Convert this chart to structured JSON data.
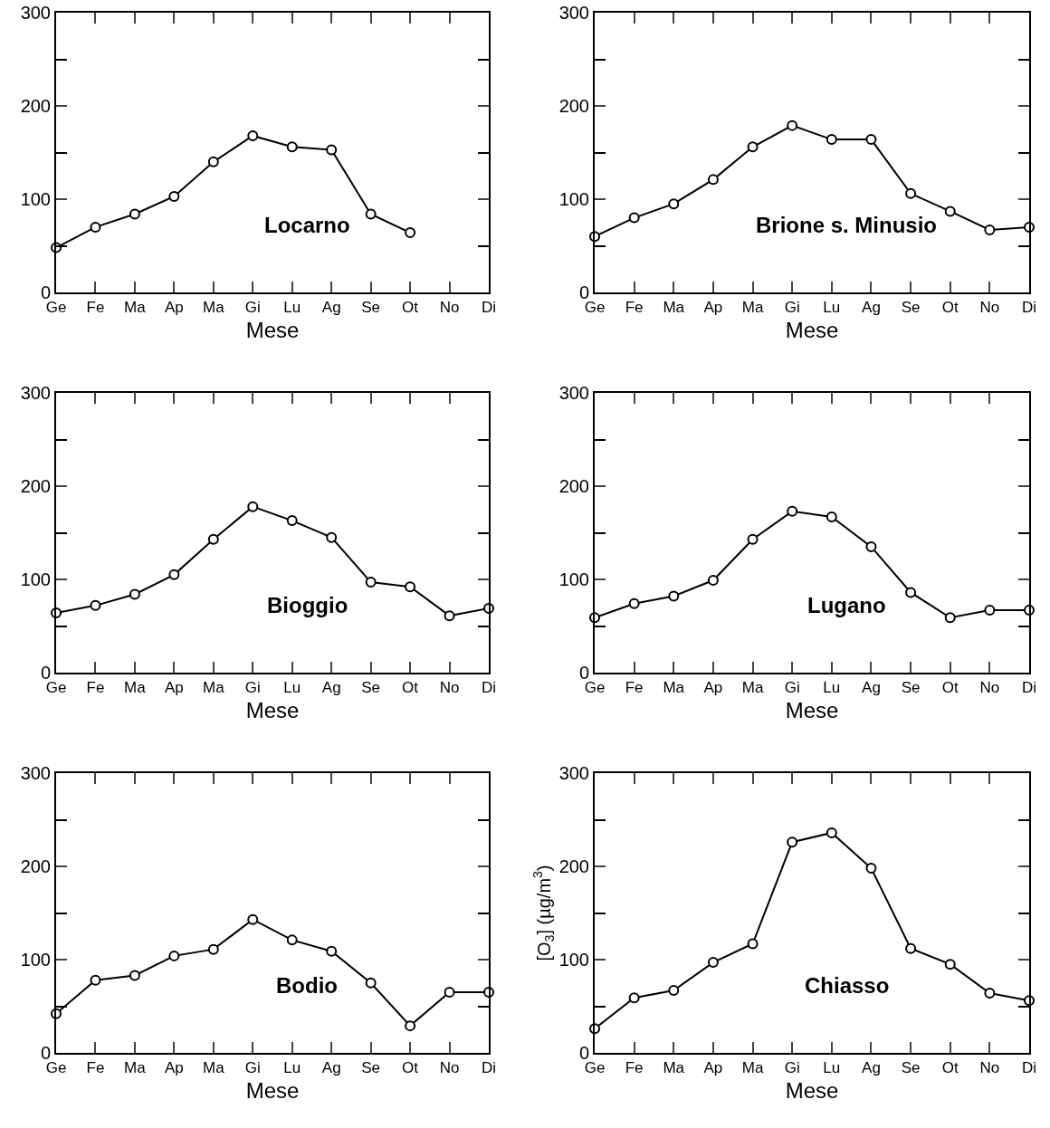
{
  "chart_data": [
    {
      "type": "line",
      "categories": [
        "Ge",
        "Fe",
        "Ma",
        "Ap",
        "Ma",
        "Gi",
        "Lu",
        "Ag",
        "Se",
        "Ot",
        "No",
        "Di"
      ],
      "xlabel": "Mese",
      "annotations": [
        "Locarno"
      ],
      "series": [
        {
          "color": "#000000",
          "values": [
            48,
            70,
            84,
            103,
            140,
            168,
            156,
            153,
            84,
            64,
            null,
            null
          ]
        }
      ],
      "ylim": [
        0,
        300
      ],
      "yticks": [
        0,
        {
          "value": 50,
          "label": null
        },
        100,
        {
          "value": 150,
          "label": null
        },
        200,
        {
          "value": 250,
          "label": null
        },
        300
      ],
      "marker": "circle",
      "line_style": "solid"
    },
    {
      "type": "line",
      "categories": [
        "Ge",
        "Fe",
        "Ma",
        "Ap",
        "Ma",
        "Gi",
        "Lu",
        "Ag",
        "Se",
        "Ot",
        "No",
        "Di"
      ],
      "xlabel": "Mese",
      "annotations": [
        "Brione s. Minusio"
      ],
      "series": [
        {
          "color": "#000000",
          "values": [
            60,
            80,
            95,
            121,
            156,
            179,
            164,
            164,
            106,
            87,
            67,
            70
          ]
        }
      ],
      "ylim": [
        0,
        300
      ],
      "yticks": [
        0,
        {
          "value": 50,
          "label": null
        },
        100,
        {
          "value": 150,
          "label": null
        },
        200,
        {
          "value": 250,
          "label": null
        },
        300
      ],
      "marker": "circle",
      "line_style": "solid"
    },
    {
      "type": "line",
      "categories": [
        "Ge",
        "Fe",
        "Ma",
        "Ap",
        "Ma",
        "Gi",
        "Lu",
        "Ag",
        "Se",
        "Ot",
        "No",
        "Di"
      ],
      "xlabel": "Mese",
      "annotations": [
        "Bioggio"
      ],
      "series": [
        {
          "color": "#000000",
          "values": [
            64,
            72,
            84,
            105,
            143,
            178,
            163,
            145,
            97,
            92,
            61,
            69
          ]
        }
      ],
      "ylim": [
        0,
        300
      ],
      "yticks": [
        0,
        {
          "value": 50,
          "label": null
        },
        100,
        {
          "value": 150,
          "label": null
        },
        200,
        {
          "value": 250,
          "label": null
        },
        300
      ],
      "marker": "circle",
      "line_style": "solid"
    },
    {
      "type": "line",
      "categories": [
        "Ge",
        "Fe",
        "Ma",
        "Ap",
        "Ma",
        "Gi",
        "Lu",
        "Ag",
        "Se",
        "Ot",
        "No",
        "Di"
      ],
      "xlabel": "Mese",
      "annotations": [
        "Lugano"
      ],
      "series": [
        {
          "color": "#000000",
          "values": [
            59,
            74,
            82,
            99,
            143,
            173,
            167,
            135,
            86,
            59,
            67,
            67
          ]
        }
      ],
      "ylim": [
        0,
        300
      ],
      "yticks": [
        0,
        {
          "value": 50,
          "label": null
        },
        100,
        {
          "value": 150,
          "label": null
        },
        200,
        {
          "value": 250,
          "label": null
        },
        300
      ],
      "marker": "circle",
      "line_style": "solid"
    },
    {
      "type": "line",
      "categories": [
        "Ge",
        "Fe",
        "Ma",
        "Ap",
        "Ma",
        "Gi",
        "Lu",
        "Ag",
        "Se",
        "Ot",
        "No",
        "Di"
      ],
      "xlabel": "Mese",
      "annotations": [
        "Bodio"
      ],
      "series": [
        {
          "color": "#000000",
          "values": [
            42,
            78,
            83,
            104,
            111,
            143,
            121,
            109,
            75,
            29,
            65,
            65
          ]
        }
      ],
      "ylim": [
        0,
        300
      ],
      "yticks": [
        0,
        {
          "value": 50,
          "label": null
        },
        100,
        {
          "value": 150,
          "label": null
        },
        200,
        {
          "value": 250,
          "label": null
        },
        300
      ],
      "marker": "circle",
      "line_style": "solid"
    },
    {
      "type": "line",
      "categories": [
        "Ge",
        "Fe",
        "Ma",
        "Ap",
        "Ma",
        "Gi",
        "Lu",
        "Ag",
        "Se",
        "Ot",
        "No",
        "Di"
      ],
      "xlabel": "Mese",
      "ylabel": "[O$_{3}$] (µg/m$^{3}$)",
      "annotations": [
        "Chiasso"
      ],
      "series": [
        {
          "color": "#000000",
          "values": [
            26,
            59,
            67,
            97,
            117,
            226,
            236,
            198,
            112,
            95,
            64,
            56
          ]
        }
      ],
      "ylim": [
        0,
        300
      ],
      "yticks": [
        0,
        {
          "value": 50,
          "label": null
        },
        100,
        {
          "value": 150,
          "label": null
        },
        200,
        {
          "value": 250,
          "label": null
        },
        300
      ],
      "marker": "circle",
      "line_style": "solid"
    }
  ]
}
